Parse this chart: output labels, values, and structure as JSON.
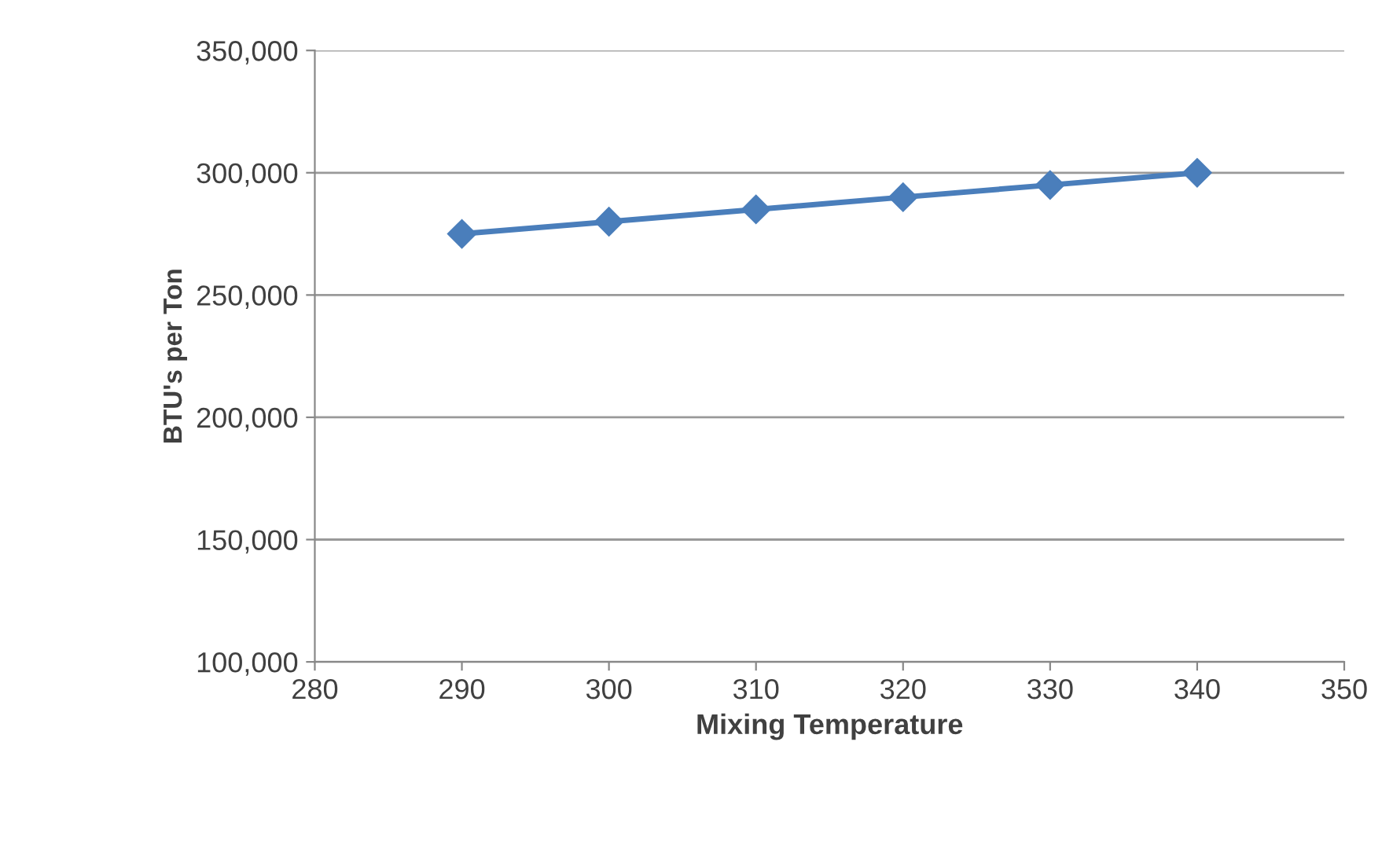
{
  "chart_data": {
    "type": "line",
    "xlabel": "Mixing Temperature",
    "ylabel": "BTU's per Ton",
    "x": [
      290,
      300,
      310,
      320,
      330,
      340
    ],
    "series": [
      {
        "color": "#4a7ebb",
        "values": [
          275000,
          280000,
          285000,
          290000,
          295000,
          300000
        ]
      }
    ],
    "xlim": [
      280,
      350
    ],
    "xticks": [
      280,
      290,
      300,
      310,
      320,
      330,
      340,
      350
    ],
    "ylim": [
      100000,
      350000
    ],
    "yticks": [
      {
        "value": 100000,
        "label": "100,000"
      },
      {
        "value": 150000,
        "label": "150,000"
      },
      {
        "value": 200000,
        "label": "200,000"
      },
      {
        "value": 250000,
        "label": "250,000"
      },
      {
        "value": 300000,
        "label": "300,000"
      },
      {
        "value": 350000,
        "label": "350,000"
      }
    ],
    "grid": "y",
    "marker": "diamond",
    "line_style": "solid",
    "legend": false
  }
}
